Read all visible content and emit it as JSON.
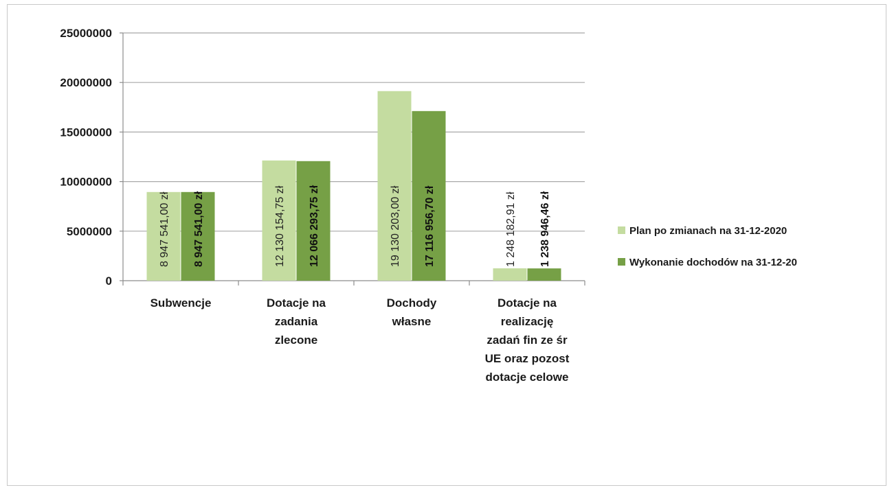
{
  "chart_data": {
    "type": "bar",
    "title": "",
    "xlabel": "",
    "ylabel": "",
    "ylim": [
      0,
      25000000
    ],
    "yticks": [
      0,
      5000000,
      10000000,
      15000000,
      20000000,
      25000000
    ],
    "ytick_labels": [
      "0",
      "5000000",
      "10000000",
      "15000000",
      "20000000",
      "25000000"
    ],
    "grid": true,
    "legend_position": "right",
    "categories": [
      [
        "Subwencje"
      ],
      [
        "Dotacje na",
        "zadania",
        "zlecone"
      ],
      [
        "Dochody",
        "własne"
      ],
      [
        "Dotacje na",
        "realizację",
        "zadań fin ze śr",
        "UE oraz pozost",
        "dotacje celowe"
      ]
    ],
    "series": [
      {
        "name": "Plan po zmianach na 31-12-2020",
        "color": "#c4dca0",
        "values": [
          8947541.0,
          12130154.75,
          19130203.0,
          1248182.91
        ],
        "labels": [
          "8 947 541,00 zł",
          "12 130 154,75 zł",
          "19 130 203,00 zł",
          "1 248 182,91 zł"
        ]
      },
      {
        "name": "Wykonanie dochodów na 31-12-20",
        "color": "#76a046",
        "values": [
          8947541.0,
          12066293.75,
          17116956.7,
          1238946.46
        ],
        "labels": [
          "8 947 541,00 zł",
          "12 066 293,75 zł",
          "17 116 956,70 zł",
          "1 238 946,46 zł"
        ]
      }
    ]
  }
}
